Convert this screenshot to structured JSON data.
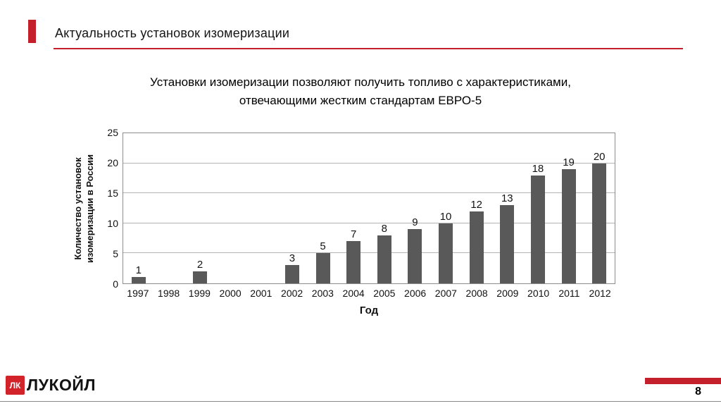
{
  "slide": {
    "title": "Актуальность установок изомеризации",
    "subtitle_lines": [
      "Установки изомеризации позволяют получить топливо с характеристиками,",
      "отвечающими жестким стандартам ЕВРО-5"
    ],
    "page_number": "8",
    "logo_text": "ЛУКОЙЛ",
    "logo_mark_text": "ЛК",
    "accent_color": "#c4202c"
  },
  "chart_data": {
    "type": "bar",
    "title": "",
    "categories": [
      "1997",
      "1998",
      "1999",
      "2000",
      "2001",
      "2002",
      "2003",
      "2004",
      "2005",
      "2006",
      "2007",
      "2008",
      "2009",
      "2010",
      "2011",
      "2012"
    ],
    "values": [
      1,
      0,
      2,
      0,
      0,
      3,
      5,
      7,
      8,
      9,
      10,
      12,
      13,
      18,
      19,
      20
    ],
    "xlabel": "Год",
    "ylabel": "Количество установок изомеризации в России",
    "ylabel_lines": [
      "Количество установок",
      "изомеризации в России"
    ],
    "ylim": [
      0,
      25
    ],
    "yticks": [
      0,
      5,
      10,
      15,
      20,
      25
    ],
    "bar_color": "#595959",
    "grid": true,
    "legend": false
  }
}
